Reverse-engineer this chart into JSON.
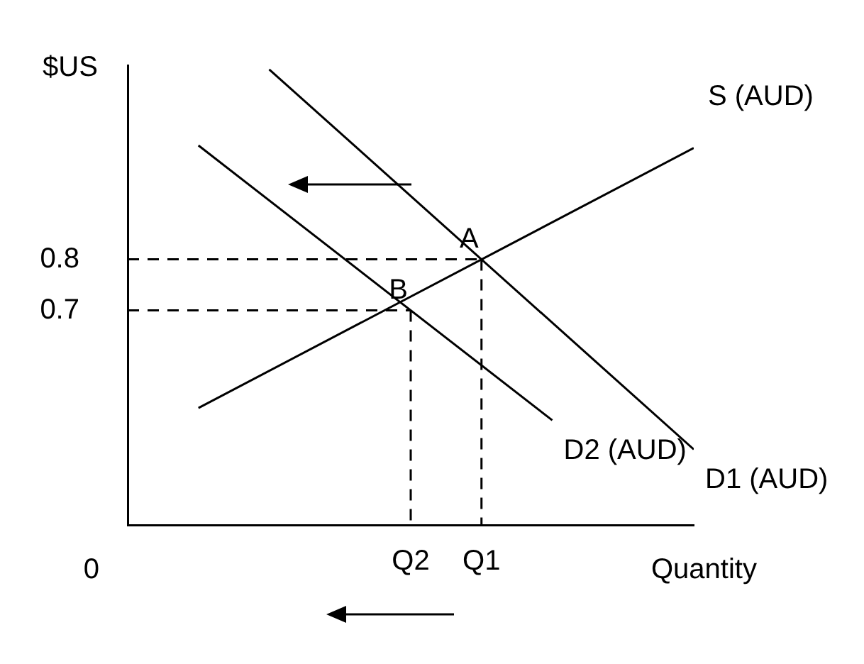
{
  "chart_data": {
    "type": "line",
    "ylabel": "$US",
    "xlabel": "Quantity",
    "ylim": [
      0.28,
      1.18
    ],
    "categories": [
      null,
      null,
      null,
      null,
      "Q2",
      "Q1",
      null,
      null,
      null
    ],
    "yticks": [
      0.7,
      0.8
    ],
    "grid": false,
    "legend": false,
    "marker": "none",
    "series": [
      {
        "name": "S (AUD)",
        "color": "#000000",
        "values": [
          null,
          0.509,
          null,
          null,
          null,
          null,
          null,
          null,
          1.018
        ]
      },
      {
        "name": "D1 (AUD)",
        "color": "#000000",
        "values": [
          null,
          null,
          1.172,
          null,
          null,
          null,
          null,
          null,
          0.428
        ]
      },
      {
        "name": "D2 (AUD)",
        "color": "#000000",
        "values": [
          null,
          1.023,
          null,
          null,
          null,
          null,
          0.485,
          null,
          null
        ]
      },
      {
        "color": "#000000",
        "line_style": "dashed",
        "values": [
          0.8,
          null,
          null,
          null,
          null,
          0.8,
          null,
          null,
          null
        ]
      },
      {
        "color": "#000000",
        "line_style": "dashed",
        "values": [
          0.7,
          null,
          null,
          null,
          0.7,
          null,
          null,
          null,
          null
        ]
      },
      {
        "color": "#000000",
        "line_style": "dashed",
        "x": [
          "Q1",
          "Q1"
        ],
        "values": [
          0.8,
          0.28
        ]
      },
      {
        "color": "#000000",
        "line_style": "dashed",
        "x": [
          "Q2",
          "Q2"
        ],
        "values": [
          0.7,
          0.28
        ]
      }
    ],
    "annotations": [
      {
        "text": "A",
        "x": "Q1",
        "y": 0.8
      },
      {
        "text": "B",
        "x": "Q2",
        "y": 0.7
      },
      "0"
    ]
  }
}
